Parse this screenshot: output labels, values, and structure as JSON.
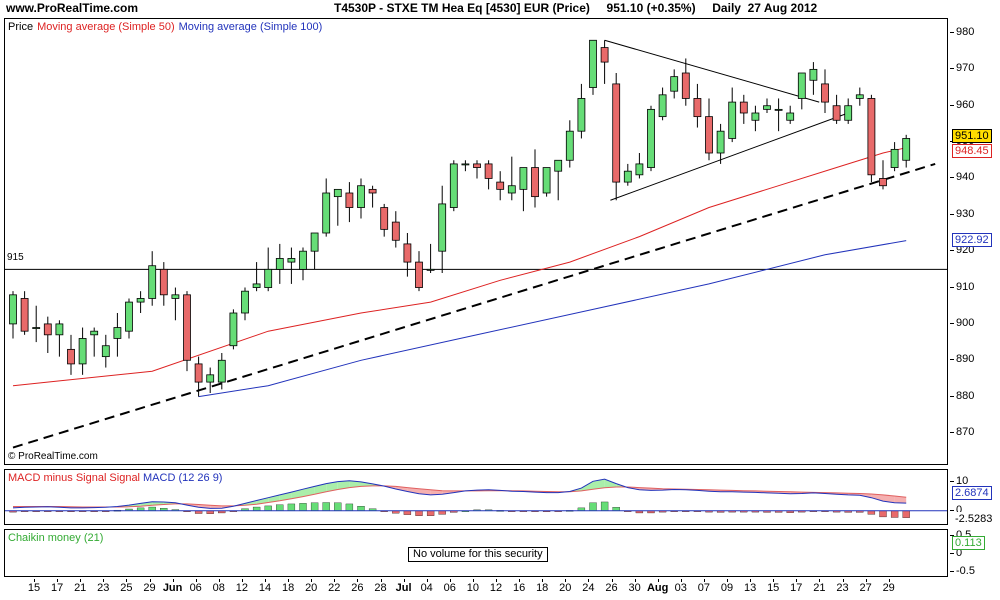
{
  "header": {
    "site_url": "www.ProRealTime.com",
    "title": "T4530P - STXE TM Hea Eq [4530] EUR (Price)     951.10 (+0.35%)     Daily  27 Aug 2012"
  },
  "price_panel": {
    "legend_price": "Price",
    "legend_ma50": "Moving average (Simple 50)",
    "legend_ma100": "Moving average (Simple 100)",
    "copyright": "© ProRealTime.com",
    "horizontal_line_label": "915",
    "y_ticks": [
      "980",
      "970",
      "960",
      "950",
      "940",
      "930",
      "920",
      "910",
      "900",
      "890",
      "880",
      "870"
    ],
    "last_price_tag": "951.10",
    "ma50_tag": "948.45",
    "ma100_tag": "922.92"
  },
  "macd_panel": {
    "legend_macd_minus_signal": "MACD minus Signal",
    "legend_signal": "Signal",
    "legend_macd": "MACD (12 26 9)",
    "y_ticks": [
      "10",
      "0"
    ],
    "macd_tag": "2.6874",
    "hist_tag": "-2.5283"
  },
  "chaikin_panel": {
    "legend": "Chaikin money (21)",
    "message": "No volume for this security",
    "y_ticks": [
      "0.5",
      "0",
      "-0.5"
    ],
    "value_tag": "0.113"
  },
  "x_axis": {
    "labels": [
      "15",
      "17",
      "21",
      "23",
      "25",
      "29",
      "Jun",
      "06",
      "08",
      "12",
      "14",
      "18",
      "20",
      "22",
      "26",
      "28",
      "Jul",
      "04",
      "06",
      "10",
      "12",
      "16",
      "18",
      "20",
      "24",
      "26",
      "30",
      "Aug",
      "03",
      "07",
      "09",
      "13",
      "15",
      "17",
      "21",
      "23",
      "27",
      "29"
    ]
  },
  "colors": {
    "up": "#66dd77",
    "down": "#e86a6a",
    "ma50": "#dd2222",
    "ma100": "#2233bb",
    "price_tag_bg": "#ffdd00"
  },
  "chart_data": [
    {
      "type": "candlestick",
      "title": "T4530P - STXE TM Hea Eq [4530] EUR (Price)",
      "ylim": [
        865,
        985
      ],
      "reference_line": 915,
      "candles": [
        {
          "o": 900,
          "h": 909,
          "l": 896,
          "c": 908
        },
        {
          "o": 907,
          "h": 909,
          "l": 897,
          "c": 898
        },
        {
          "o": 899,
          "h": 905,
          "l": 895,
          "c": 899
        },
        {
          "o": 900,
          "h": 902,
          "l": 892,
          "c": 897
        },
        {
          "o": 897,
          "h": 901,
          "l": 891,
          "c": 900
        },
        {
          "o": 893,
          "h": 897,
          "l": 886,
          "c": 889
        },
        {
          "o": 889,
          "h": 899,
          "l": 886,
          "c": 896
        },
        {
          "o": 897,
          "h": 899,
          "l": 891,
          "c": 898
        },
        {
          "o": 891,
          "h": 897,
          "l": 888,
          "c": 894
        },
        {
          "o": 896,
          "h": 903,
          "l": 891,
          "c": 899
        },
        {
          "o": 898,
          "h": 907,
          "l": 896,
          "c": 906
        },
        {
          "o": 906,
          "h": 909,
          "l": 903,
          "c": 907
        },
        {
          "o": 907,
          "h": 920,
          "l": 905,
          "c": 916
        },
        {
          "o": 915,
          "h": 917,
          "l": 905,
          "c": 908
        },
        {
          "o": 907,
          "h": 910,
          "l": 901,
          "c": 908
        },
        {
          "o": 908,
          "h": 909,
          "l": 887,
          "c": 890
        },
        {
          "o": 889,
          "h": 891,
          "l": 880,
          "c": 884
        },
        {
          "o": 884,
          "h": 888,
          "l": 881,
          "c": 886
        },
        {
          "o": 884,
          "h": 892,
          "l": 882,
          "c": 890
        },
        {
          "o": 894,
          "h": 904,
          "l": 893,
          "c": 903
        },
        {
          "o": 903,
          "h": 910,
          "l": 901,
          "c": 909
        },
        {
          "o": 910,
          "h": 917,
          "l": 909,
          "c": 911
        },
        {
          "o": 910,
          "h": 921,
          "l": 909,
          "c": 915
        },
        {
          "o": 915,
          "h": 922,
          "l": 911,
          "c": 918
        },
        {
          "o": 917,
          "h": 921,
          "l": 911,
          "c": 918
        },
        {
          "o": 915,
          "h": 921,
          "l": 912,
          "c": 920
        },
        {
          "o": 920,
          "h": 925,
          "l": 915,
          "c": 925
        },
        {
          "o": 925,
          "h": 940,
          "l": 924,
          "c": 936
        },
        {
          "o": 935,
          "h": 937,
          "l": 927,
          "c": 937
        },
        {
          "o": 936,
          "h": 939,
          "l": 928,
          "c": 932
        },
        {
          "o": 932,
          "h": 940,
          "l": 929,
          "c": 938
        },
        {
          "o": 937,
          "h": 938,
          "l": 932,
          "c": 936
        },
        {
          "o": 932,
          "h": 933,
          "l": 924,
          "c": 926
        },
        {
          "o": 928,
          "h": 931,
          "l": 921,
          "c": 923
        },
        {
          "o": 922,
          "h": 925,
          "l": 913,
          "c": 917
        },
        {
          "o": 917,
          "h": 920,
          "l": 909,
          "c": 910
        },
        {
          "o": 915,
          "h": 922,
          "l": 914,
          "c": 915
        },
        {
          "o": 920,
          "h": 938,
          "l": 914,
          "c": 933
        },
        {
          "o": 932,
          "h": 945,
          "l": 931,
          "c": 944
        },
        {
          "o": 944,
          "h": 945,
          "l": 942,
          "c": 944
        },
        {
          "o": 944,
          "h": 945,
          "l": 940,
          "c": 943
        },
        {
          "o": 944,
          "h": 945,
          "l": 937,
          "c": 940
        },
        {
          "o": 939,
          "h": 942,
          "l": 934,
          "c": 937
        },
        {
          "o": 936,
          "h": 946,
          "l": 934,
          "c": 938
        },
        {
          "o": 937,
          "h": 943,
          "l": 931,
          "c": 943
        },
        {
          "o": 943,
          "h": 948,
          "l": 932,
          "c": 935
        },
        {
          "o": 936,
          "h": 943,
          "l": 935,
          "c": 943
        },
        {
          "o": 942,
          "h": 945,
          "l": 934,
          "c": 945
        },
        {
          "o": 945,
          "h": 956,
          "l": 943,
          "c": 953
        },
        {
          "o": 953,
          "h": 966,
          "l": 951,
          "c": 962
        },
        {
          "o": 965,
          "h": 978,
          "l": 963,
          "c": 978
        },
        {
          "o": 976,
          "h": 978,
          "l": 966,
          "c": 972
        },
        {
          "o": 966,
          "h": 969,
          "l": 934,
          "c": 939
        },
        {
          "o": 939,
          "h": 944,
          "l": 938,
          "c": 942
        },
        {
          "o": 941,
          "h": 947,
          "l": 940,
          "c": 944
        },
        {
          "o": 943,
          "h": 960,
          "l": 942,
          "c": 959
        },
        {
          "o": 957,
          "h": 965,
          "l": 956,
          "c": 963
        },
        {
          "o": 964,
          "h": 970,
          "l": 962,
          "c": 968
        },
        {
          "o": 969,
          "h": 973,
          "l": 960,
          "c": 962
        },
        {
          "o": 962,
          "h": 966,
          "l": 954,
          "c": 957
        },
        {
          "o": 957,
          "h": 962,
          "l": 945,
          "c": 947
        },
        {
          "o": 947,
          "h": 955,
          "l": 944,
          "c": 953
        },
        {
          "o": 951,
          "h": 965,
          "l": 950,
          "c": 961
        },
        {
          "o": 961,
          "h": 963,
          "l": 955,
          "c": 958
        },
        {
          "o": 956,
          "h": 960,
          "l": 953,
          "c": 958
        },
        {
          "o": 959,
          "h": 962,
          "l": 958,
          "c": 960
        },
        {
          "o": 959,
          "h": 962,
          "l": 953,
          "c": 959
        },
        {
          "o": 956,
          "h": 960,
          "l": 955,
          "c": 958
        },
        {
          "o": 962,
          "h": 969,
          "l": 959,
          "c": 969
        },
        {
          "o": 967,
          "h": 972,
          "l": 963,
          "c": 970
        },
        {
          "o": 966,
          "h": 970,
          "l": 958,
          "c": 961
        },
        {
          "o": 960,
          "h": 963,
          "l": 955,
          "c": 956
        },
        {
          "o": 956,
          "h": 962,
          "l": 955,
          "c": 960
        },
        {
          "o": 962,
          "h": 965,
          "l": 960,
          "c": 963
        },
        {
          "o": 962,
          "h": 963,
          "l": 939,
          "c": 941
        },
        {
          "o": 940,
          "h": 945,
          "l": 937,
          "c": 938
        },
        {
          "o": 943,
          "h": 950,
          "l": 942,
          "c": 948
        },
        {
          "o": 945,
          "h": 952,
          "l": 943,
          "c": 951
        }
      ],
      "ma50": [
        {
          "i": 0,
          "v": 883
        },
        {
          "i": 12,
          "v": 887
        },
        {
          "i": 22,
          "v": 898
        },
        {
          "i": 30,
          "v": 903
        },
        {
          "i": 36,
          "v": 906
        },
        {
          "i": 42,
          "v": 912
        },
        {
          "i": 48,
          "v": 917
        },
        {
          "i": 54,
          "v": 924
        },
        {
          "i": 60,
          "v": 932
        },
        {
          "i": 66,
          "v": 938
        },
        {
          "i": 71,
          "v": 943
        },
        {
          "i": 75,
          "v": 947
        },
        {
          "i": 77,
          "v": 948.45
        }
      ],
      "ma100": [
        {
          "i": 16,
          "v": 880
        },
        {
          "i": 22,
          "v": 883
        },
        {
          "i": 30,
          "v": 890
        },
        {
          "i": 40,
          "v": 897
        },
        {
          "i": 50,
          "v": 904
        },
        {
          "i": 60,
          "v": 911
        },
        {
          "i": 70,
          "v": 919
        },
        {
          "i": 77,
          "v": 922.92
        }
      ],
      "trendlines": [
        {
          "style": "dashed",
          "from": {
            "i": 0,
            "v": 866
          },
          "to": {
            "i": 79.5,
            "v": 944
          }
        },
        {
          "style": "solid",
          "from": {
            "i": 51,
            "v": 978
          },
          "to": {
            "i": 69.5,
            "v": 961
          }
        },
        {
          "style": "solid",
          "from": {
            "i": 51.5,
            "v": 934
          },
          "to": {
            "i": 72,
            "v": 958
          }
        }
      ]
    },
    {
      "type": "macd",
      "title": "MACD (12 26 9)",
      "ylim": [
        -4,
        13
      ],
      "macd": [
        1,
        1.2,
        1.3,
        1.4,
        1.2,
        1.0,
        1.0,
        1.1,
        1.2,
        1.5,
        2,
        2.6,
        3.2,
        3.1,
        2.8,
        2.0,
        1.2,
        0.8,
        0.9,
        1.6,
        2.6,
        3.6,
        4.6,
        5.6,
        6.6,
        7.6,
        8.6,
        9.6,
        10.3,
        10.6,
        10.2,
        9.5,
        8.7,
        7.7,
        6.8,
        6.0,
        5.6,
        5.8,
        6.4,
        7.0,
        7.3,
        7.4,
        7.2,
        6.9,
        6.8,
        6.6,
        6.4,
        6.4,
        6.8,
        8.0,
        10.4,
        11.2,
        9.6,
        8.2,
        7.4,
        7.2,
        7.3,
        7.5,
        7.4,
        7.2,
        6.9,
        6.7,
        6.7,
        6.6,
        6.5,
        6.3,
        6.2,
        6.0,
        6.1,
        6.3,
        6.1,
        5.8,
        5.6,
        5.5,
        4.6,
        3.4,
        2.8,
        2.7
      ],
      "signal": [
        1.5,
        1.5,
        1.5,
        1.5,
        1.5,
        1.4,
        1.3,
        1.3,
        1.3,
        1.3,
        1.4,
        1.6,
        1.9,
        2.2,
        2.4,
        2.4,
        2.2,
        1.9,
        1.7,
        1.7,
        1.9,
        2.3,
        2.9,
        3.5,
        4.2,
        5.0,
        5.8,
        6.7,
        7.5,
        8.2,
        8.6,
        8.8,
        8.8,
        8.6,
        8.2,
        7.8,
        7.4,
        7.1,
        7.0,
        7.0,
        7.0,
        7.1,
        7.1,
        7.1,
        7.0,
        6.9,
        6.8,
        6.7,
        6.7,
        7.0,
        7.6,
        8.1,
        8.4,
        8.4,
        8.2,
        8.0,
        7.8,
        7.7,
        7.6,
        7.5,
        7.4,
        7.3,
        7.2,
        7.1,
        7.0,
        6.9,
        6.8,
        6.7,
        6.6,
        6.5,
        6.4,
        6.3,
        6.2,
        6.1,
        5.9,
        5.6,
        5.2,
        4.8
      ],
      "histogram": [
        -0.5,
        -0.3,
        -0.2,
        -0.1,
        -0.3,
        -0.4,
        -0.3,
        -0.2,
        -0.1,
        0.2,
        0.6,
        1.0,
        1.3,
        0.9,
        0.4,
        -0.4,
        -1.0,
        -1.1,
        -0.8,
        -0.1,
        0.7,
        1.3,
        1.7,
        2.1,
        2.4,
        2.6,
        2.8,
        2.9,
        2.8,
        2.4,
        1.6,
        0.7,
        -0.1,
        -0.9,
        -1.4,
        -1.8,
        -1.8,
        -1.3,
        -0.6,
        0.0,
        0.3,
        0.3,
        0.1,
        -0.2,
        -0.2,
        -0.3,
        -0.4,
        -0.3,
        0.1,
        1.0,
        2.8,
        3.1,
        1.2,
        -0.2,
        -0.8,
        -0.8,
        -0.5,
        -0.2,
        -0.2,
        -0.3,
        -0.5,
        -0.6,
        -0.5,
        -0.5,
        -0.5,
        -0.6,
        -0.6,
        -0.7,
        -0.5,
        -0.2,
        -0.3,
        -0.5,
        -0.6,
        -0.6,
        -1.3,
        -2.2,
        -2.4,
        -2.5
      ]
    },
    {
      "type": "line",
      "title": "Chaikin money (21)",
      "ylim": [
        -0.5,
        0.5
      ],
      "value": 0.113
    }
  ]
}
